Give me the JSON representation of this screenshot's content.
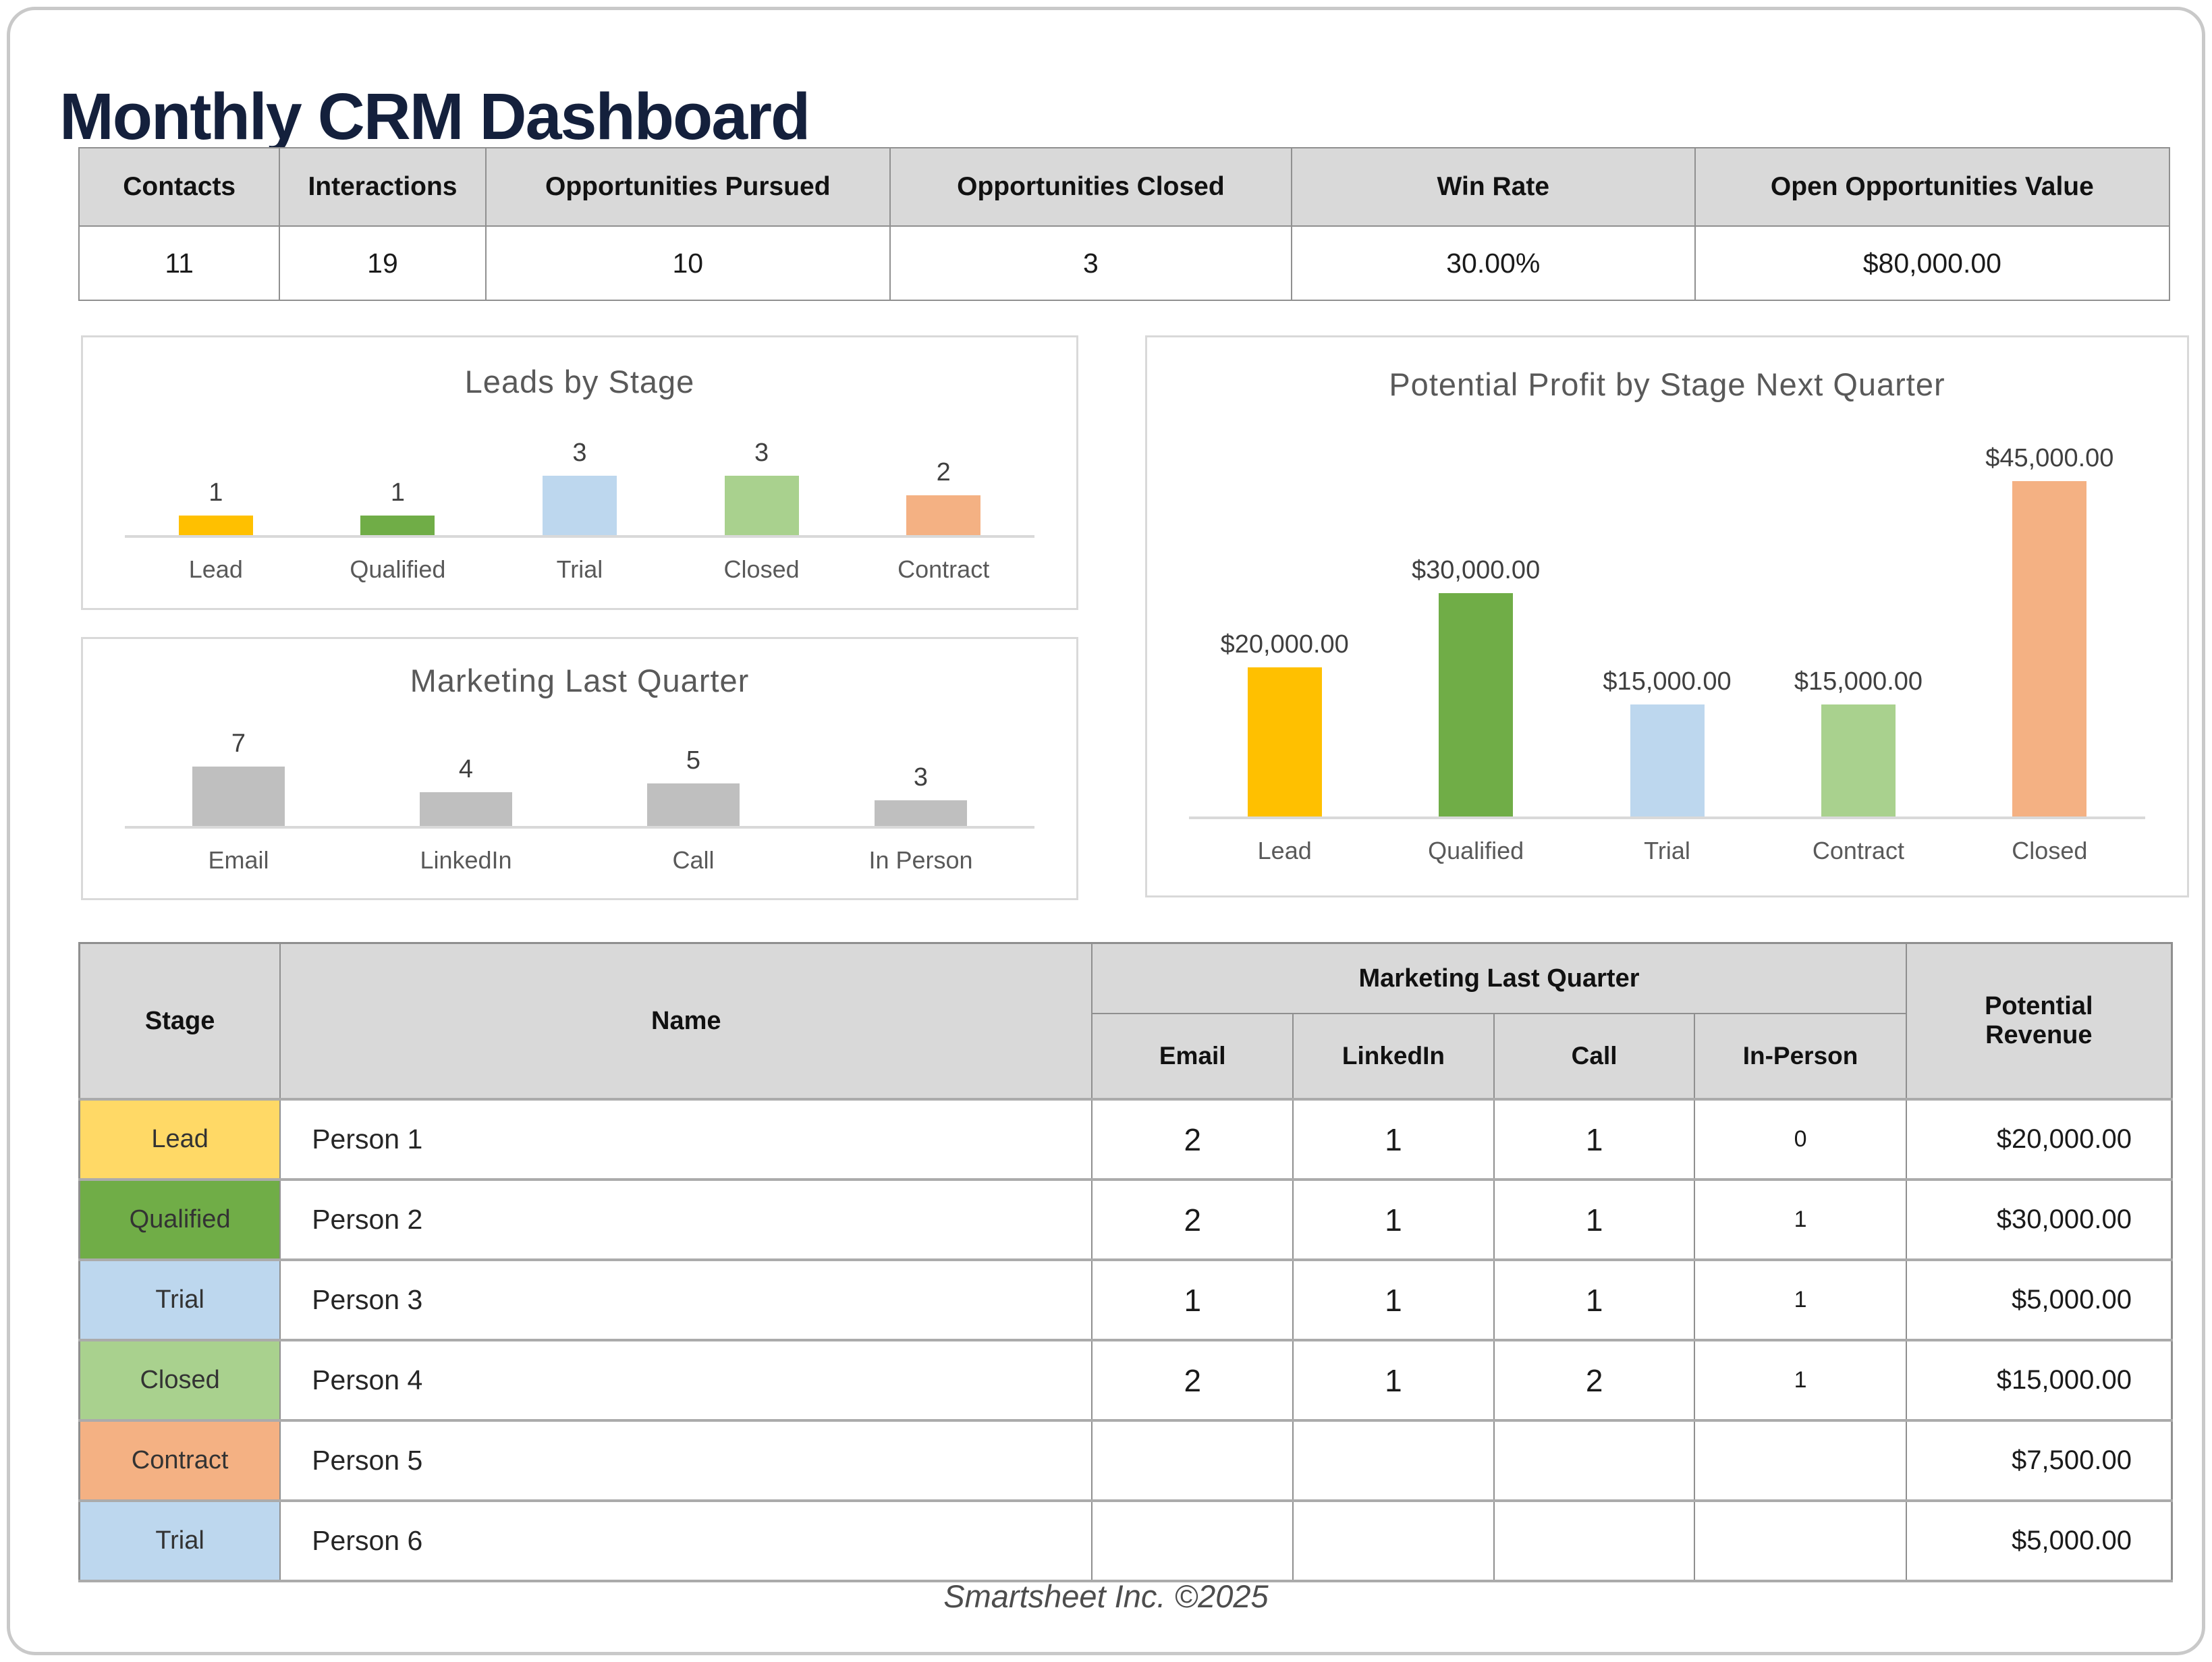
{
  "page": {
    "title": "Monthly CRM Dashboard",
    "footer": "Smartsheet Inc. ©2025"
  },
  "colors": {
    "title_navy": "#14203c",
    "header_gray": "#d9d9d9",
    "panel_border": "#d9d9d9",
    "stage_lead": "#FFD966",
    "stage_qualified": "#70AD47",
    "stage_trial": "#BDD7EE",
    "stage_closed": "#A9D18E",
    "stage_contract": "#F4B183"
  },
  "kpi": {
    "columns": [
      "Contacts",
      "Interactions",
      "Opportunities Pursued",
      "Opportunities Closed",
      "Win Rate",
      "Open Opportunities Value"
    ],
    "values": [
      "11",
      "19",
      "10",
      "3",
      "30.00%",
      "$80,000.00"
    ]
  },
  "chart_data": [
    {
      "type": "bar",
      "title": "Leads by Stage",
      "categories": [
        "Lead",
        "Qualified",
        "Trial",
        "Closed",
        "Contract"
      ],
      "values": [
        1,
        1,
        3,
        3,
        2
      ],
      "colors": [
        "#FFC000",
        "#70AD47",
        "#BDD7EE",
        "#A9D18E",
        "#F4B183"
      ],
      "ylim": [
        0,
        3
      ],
      "xlabel": "",
      "ylabel": "",
      "grid": false,
      "legend": false,
      "data_labels_shown": true
    },
    {
      "type": "bar",
      "title": "Marketing Last Quarter",
      "categories": [
        "Email",
        "LinkedIn",
        "Call",
        "In Person"
      ],
      "values": [
        7,
        4,
        5,
        3
      ],
      "colors": [
        "#BFBFBF",
        "#BFBFBF",
        "#BFBFBF",
        "#BFBFBF"
      ],
      "ylim": [
        0,
        7
      ],
      "xlabel": "",
      "ylabel": "",
      "grid": false,
      "legend": false,
      "data_labels_shown": true
    },
    {
      "type": "bar",
      "title": "Potential Profit by Stage Next Quarter",
      "categories": [
        "Lead",
        "Qualified",
        "Trial",
        "Contract",
        "Closed"
      ],
      "values": [
        20000,
        30000,
        15000,
        15000,
        45000
      ],
      "data_labels": [
        "$20,000.00",
        "$30,000.00",
        "$15,000.00",
        "$15,000.00",
        "$45,000.00"
      ],
      "colors": [
        "#FFC000",
        "#70AD47",
        "#BDD7EE",
        "#A9D18E",
        "#F4B183"
      ],
      "ylim": [
        0,
        45000
      ],
      "xlabel": "",
      "ylabel": "",
      "grid": false,
      "legend": false,
      "data_labels_shown": true
    }
  ],
  "table": {
    "headers": {
      "stage": "Stage",
      "name": "Name",
      "marketing_group": "Marketing Last Quarter",
      "email": "Email",
      "linkedin": "LinkedIn",
      "call": "Call",
      "in_person": "In-Person",
      "revenue": "Potential Revenue"
    },
    "rows": [
      {
        "stage": "Lead",
        "stage_color": "#FFD966",
        "name": "Person 1",
        "email": "2",
        "linkedin": "1",
        "call": "1",
        "in_person": "0",
        "revenue": "$20,000.00"
      },
      {
        "stage": "Qualified",
        "stage_color": "#70AD47",
        "name": "Person 2",
        "email": "2",
        "linkedin": "1",
        "call": "1",
        "in_person": "1",
        "revenue": "$30,000.00"
      },
      {
        "stage": "Trial",
        "stage_color": "#BDD7EE",
        "name": "Person 3",
        "email": "1",
        "linkedin": "1",
        "call": "1",
        "in_person": "1",
        "revenue": "$5,000.00"
      },
      {
        "stage": "Closed",
        "stage_color": "#A9D18E",
        "name": "Person 4",
        "email": "2",
        "linkedin": "1",
        "call": "2",
        "in_person": "1",
        "revenue": "$15,000.00"
      },
      {
        "stage": "Contract",
        "stage_color": "#F4B183",
        "name": "Person 5",
        "email": "",
        "linkedin": "",
        "call": "",
        "in_person": "",
        "revenue": "$7,500.00"
      },
      {
        "stage": "Trial",
        "stage_color": "#BDD7EE",
        "name": "Person 6",
        "email": "",
        "linkedin": "",
        "call": "",
        "in_person": "",
        "revenue": "$5,000.00"
      }
    ]
  }
}
